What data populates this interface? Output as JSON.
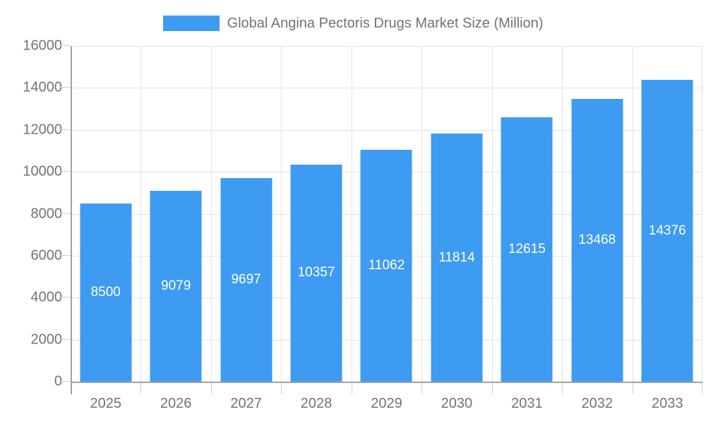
{
  "legend": {
    "swatch_color": "#3E9BF2",
    "label": "Global Angina Pectoris Drugs Market Size (Million)"
  },
  "chart_data": {
    "type": "bar",
    "title": "Global Angina Pectoris Drugs Market Size (Million)",
    "categories": [
      "2025",
      "2026",
      "2027",
      "2028",
      "2029",
      "2030",
      "2031",
      "2032",
      "2033"
    ],
    "values": [
      8500,
      9079,
      9697,
      10357,
      11062,
      11814,
      12615,
      13468,
      14376
    ],
    "value_labels": [
      "8500",
      "9079",
      "9697",
      "10357",
      "11062",
      "11814",
      "12615",
      "13468",
      "14376"
    ],
    "xlabel": "",
    "ylabel": "",
    "ylim": [
      0,
      16000
    ],
    "yticks": [
      0,
      2000,
      4000,
      6000,
      8000,
      10000,
      12000,
      14000,
      16000
    ],
    "grid": true,
    "legend_position": "top-center",
    "bar_color": "#3E9BF2",
    "value_label_color": "#FFFFFF",
    "grid_color": "#E3E3E3",
    "axis_color": "#A2A2A2",
    "tick_color": "#D0D0D0",
    "text_color": "#737373",
    "background_color": "#FFFFFF"
  }
}
